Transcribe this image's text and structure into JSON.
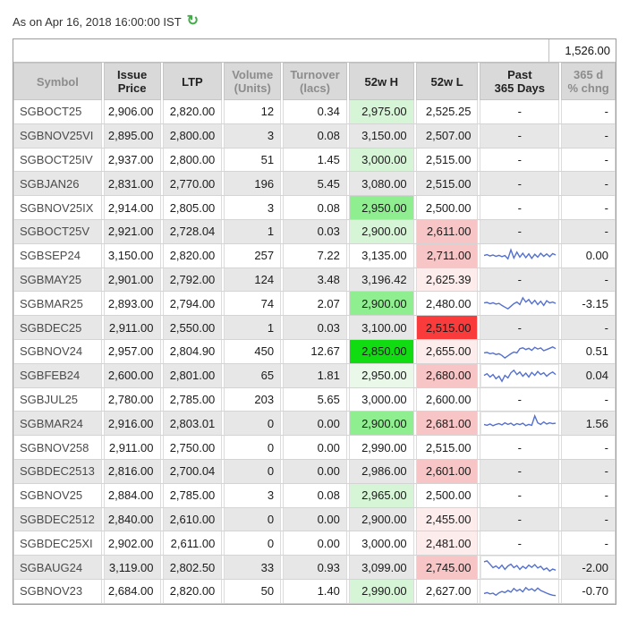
{
  "page": {
    "as_on_label": "As on Apr 16, 2018 16:00:00 IST",
    "underlying_value": "1,526.00"
  },
  "icons": {
    "refresh_glyph": "↻"
  },
  "colors": {
    "spark_line": "#5470cf",
    "header_bg": "#d9d9d9",
    "alt_row_bg": "#e7e7e7",
    "high_levels": {
      "none": "",
      "faint": "#e9f8e9",
      "light": "#d6f5d6",
      "mid": "#8fee8f",
      "strong": "#11dc11"
    },
    "low_levels": {
      "none": "",
      "faint": "#fcecec",
      "mid": "#f7c5c5",
      "strong": "#f93b3b"
    }
  },
  "table": {
    "headers": [
      {
        "key": "symbol",
        "lines": [
          "Symbol"
        ],
        "muted": true
      },
      {
        "key": "issue-price",
        "lines": [
          "Issue",
          "Price"
        ],
        "muted": false
      },
      {
        "key": "ltp",
        "lines": [
          "LTP"
        ],
        "muted": false
      },
      {
        "key": "volume",
        "lines": [
          "Volume",
          "(Units)"
        ],
        "muted": true
      },
      {
        "key": "turnover",
        "lines": [
          "Turnover",
          "(lacs)"
        ],
        "muted": true
      },
      {
        "key": "52w-high",
        "lines": [
          "52w H"
        ],
        "muted": false
      },
      {
        "key": "52w-low",
        "lines": [
          "52w L"
        ],
        "muted": false
      },
      {
        "key": "past-365-days",
        "lines": [
          "Past",
          "365 Days"
        ],
        "muted": false
      },
      {
        "key": "365d-pct-chng",
        "lines": [
          "365 d",
          "% chng"
        ],
        "muted": true
      }
    ],
    "no_data_dash": "-",
    "rows": [
      {
        "symbol": "SGBOCT25",
        "issue_price": "2,906.00",
        "ltp": "2,820.00",
        "volume": "12",
        "turnover": "0.34",
        "high_52w": "2,975.00",
        "low_52w": "2,525.25",
        "high_hl": "light",
        "low_hl": "none",
        "spark": null,
        "chng": "-"
      },
      {
        "symbol": "SGBNOV25VI",
        "issue_price": "2,895.00",
        "ltp": "2,800.00",
        "volume": "3",
        "turnover": "0.08",
        "high_52w": "3,150.00",
        "low_52w": "2,507.00",
        "high_hl": "none",
        "low_hl": "none",
        "spark": null,
        "chng": "-"
      },
      {
        "symbol": "SGBOCT25IV",
        "issue_price": "2,937.00",
        "ltp": "2,800.00",
        "volume": "51",
        "turnover": "1.45",
        "high_52w": "3,000.00",
        "low_52w": "2,515.00",
        "high_hl": "light",
        "low_hl": "none",
        "spark": null,
        "chng": "-"
      },
      {
        "symbol": "SGBJAN26",
        "issue_price": "2,831.00",
        "ltp": "2,770.00",
        "volume": "196",
        "turnover": "5.45",
        "high_52w": "3,080.00",
        "low_52w": "2,515.00",
        "high_hl": "none",
        "low_hl": "none",
        "spark": null,
        "chng": "-"
      },
      {
        "symbol": "SGBNOV25IX",
        "issue_price": "2,914.00",
        "ltp": "2,805.00",
        "volume": "3",
        "turnover": "0.08",
        "high_52w": "2,950.00",
        "low_52w": "2,500.00",
        "high_hl": "mid",
        "low_hl": "none",
        "spark": null,
        "chng": "-"
      },
      {
        "symbol": "SGBOCT25V",
        "issue_price": "2,921.00",
        "ltp": "2,728.04",
        "volume": "1",
        "turnover": "0.03",
        "high_52w": "2,900.00",
        "low_52w": "2,611.00",
        "high_hl": "light",
        "low_hl": "mid",
        "spark": null,
        "chng": "-"
      },
      {
        "symbol": "SGBSEP24",
        "issue_price": "3,150.00",
        "ltp": "2,820.00",
        "volume": "257",
        "turnover": "7.22",
        "high_52w": "3,135.00",
        "low_52w": "2,711.00",
        "high_hl": "none",
        "low_hl": "mid",
        "spark": [
          55,
          60,
          52,
          58,
          50,
          56,
          48,
          55,
          35,
          88,
          40,
          75,
          45,
          68,
          42,
          65,
          38,
          62,
          45,
          68,
          50,
          64,
          48,
          66,
          58
        ],
        "chng": "0.00"
      },
      {
        "symbol": "SGBMAY25",
        "issue_price": "2,901.00",
        "ltp": "2,792.00",
        "volume": "124",
        "turnover": "3.48",
        "high_52w": "3,196.42",
        "low_52w": "2,625.39",
        "high_hl": "none",
        "low_hl": "faint",
        "spark": null,
        "chng": "-"
      },
      {
        "symbol": "SGBMAR25",
        "issue_price": "2,893.00",
        "ltp": "2,794.00",
        "volume": "74",
        "turnover": "2.07",
        "high_52w": "2,900.00",
        "low_52w": "2,480.00",
        "high_hl": "mid",
        "low_hl": "none",
        "spark": [
          55,
          58,
          50,
          56,
          48,
          52,
          40,
          30,
          20,
          35,
          50,
          60,
          45,
          85,
          60,
          75,
          50,
          70,
          45,
          65,
          40,
          68,
          55,
          60,
          52
        ],
        "chng": "-3.15"
      },
      {
        "symbol": "SGBDEC25",
        "issue_price": "2,911.00",
        "ltp": "2,550.00",
        "volume": "1",
        "turnover": "0.03",
        "high_52w": "3,100.00",
        "low_52w": "2,515.00",
        "high_hl": "none",
        "low_hl": "strong",
        "spark": null,
        "chng": "-"
      },
      {
        "symbol": "SGBNOV24",
        "issue_price": "2,957.00",
        "ltp": "2,804.90",
        "volume": "450",
        "turnover": "12.67",
        "high_52w": "2,850.00",
        "low_52w": "2,655.00",
        "high_hl": "strong",
        "low_hl": "faint",
        "spark": [
          45,
          48,
          40,
          44,
          36,
          40,
          30,
          15,
          28,
          40,
          50,
          45,
          70,
          75,
          65,
          72,
          60,
          78,
          68,
          74,
          58,
          65,
          72,
          80,
          70
        ],
        "chng": "0.51"
      },
      {
        "symbol": "SGBFEB24",
        "issue_price": "2,600.00",
        "ltp": "2,801.00",
        "volume": "65",
        "turnover": "1.81",
        "high_52w": "2,950.00",
        "low_52w": "2,680.00",
        "high_hl": "faint",
        "low_hl": "mid",
        "spark": [
          55,
          65,
          45,
          60,
          35,
          50,
          20,
          55,
          40,
          70,
          85,
          60,
          75,
          50,
          68,
          45,
          72,
          55,
          78,
          60,
          70,
          50,
          65,
          75,
          60
        ],
        "chng": "0.04"
      },
      {
        "symbol": "SGBJUL25",
        "issue_price": "2,780.00",
        "ltp": "2,785.00",
        "volume": "203",
        "turnover": "5.65",
        "high_52w": "3,000.00",
        "low_52w": "2,600.00",
        "high_hl": "none",
        "low_hl": "none",
        "spark": null,
        "chng": "-"
      },
      {
        "symbol": "SGBMAR24",
        "issue_price": "2,916.00",
        "ltp": "2,803.01",
        "volume": "0",
        "turnover": "0.00",
        "high_52w": "2,900.00",
        "low_52w": "2,681.00",
        "high_hl": "mid",
        "low_hl": "mid",
        "spark": [
          45,
          40,
          48,
          38,
          45,
          50,
          42,
          55,
          45,
          52,
          40,
          50,
          44,
          52,
          38,
          45,
          40,
          95,
          55,
          45,
          60,
          48,
          55,
          50,
          52
        ],
        "chng": "1.56"
      },
      {
        "symbol": "SGBNOV258",
        "issue_price": "2,911.00",
        "ltp": "2,750.00",
        "volume": "0",
        "turnover": "0.00",
        "high_52w": "2,990.00",
        "low_52w": "2,515.00",
        "high_hl": "none",
        "low_hl": "none",
        "spark": null,
        "chng": "-"
      },
      {
        "symbol": "SGBDEC2513",
        "issue_price": "2,816.00",
        "ltp": "2,700.04",
        "volume": "0",
        "turnover": "0.00",
        "high_52w": "2,986.00",
        "low_52w": "2,601.00",
        "high_hl": "none",
        "low_hl": "mid",
        "spark": null,
        "chng": "-"
      },
      {
        "symbol": "SGBNOV25",
        "issue_price": "2,884.00",
        "ltp": "2,785.00",
        "volume": "3",
        "turnover": "0.08",
        "high_52w": "2,965.00",
        "low_52w": "2,500.00",
        "high_hl": "light",
        "low_hl": "none",
        "spark": null,
        "chng": "-"
      },
      {
        "symbol": "SGBDEC2512",
        "issue_price": "2,840.00",
        "ltp": "2,610.00",
        "volume": "0",
        "turnover": "0.00",
        "high_52w": "2,900.00",
        "low_52w": "2,455.00",
        "high_hl": "none",
        "low_hl": "faint",
        "spark": null,
        "chng": "-"
      },
      {
        "symbol": "SGBDEC25XI",
        "issue_price": "2,902.00",
        "ltp": "2,611.00",
        "volume": "0",
        "turnover": "0.00",
        "high_52w": "3,000.00",
        "low_52w": "2,481.00",
        "high_hl": "none",
        "low_hl": "faint",
        "spark": null,
        "chng": "-"
      },
      {
        "symbol": "SGBAUG24",
        "issue_price": "3,119.00",
        "ltp": "2,802.50",
        "volume": "33",
        "turnover": "0.93",
        "high_52w": "3,099.00",
        "low_52w": "2,745.00",
        "high_hl": "none",
        "low_hl": "mid",
        "spark": [
          85,
          90,
          70,
          50,
          60,
          45,
          65,
          40,
          60,
          70,
          50,
          62,
          40,
          58,
          45,
          65,
          52,
          68,
          48,
          58,
          38,
          48,
          30,
          42,
          35
        ],
        "chng": "-2.00"
      },
      {
        "symbol": "SGBNOV23",
        "issue_price": "2,684.00",
        "ltp": "2,820.00",
        "volume": "50",
        "turnover": "1.40",
        "high_52w": "2,990.00",
        "low_52w": "2,627.00",
        "high_hl": "light",
        "low_hl": "none",
        "spark": [
          40,
          45,
          38,
          42,
          30,
          44,
          52,
          46,
          58,
          48,
          70,
          55,
          65,
          50,
          75,
          60,
          68,
          55,
          72,
          58,
          50,
          42,
          35,
          30,
          28
        ],
        "chng": "-0.70"
      }
    ]
  }
}
